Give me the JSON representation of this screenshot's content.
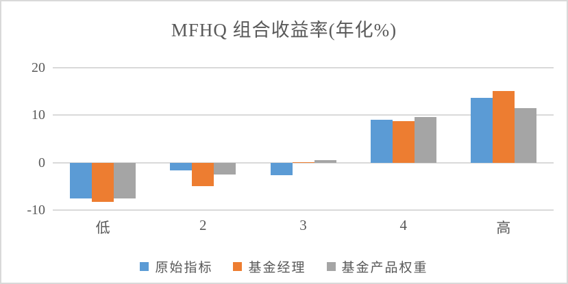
{
  "chart_data": {
    "type": "bar",
    "title": "MFHQ 组合收益率(年化%)",
    "categories": [
      "低",
      "2",
      "3",
      "4",
      "高"
    ],
    "series": [
      {
        "name": "原始指标",
        "color": "#5B9BD5",
        "values": [
          -7.5,
          -1.6,
          -2.6,
          9.1,
          13.6
        ]
      },
      {
        "name": "基金经理",
        "color": "#ED7D31",
        "values": [
          -8.2,
          -5.0,
          0.1,
          8.7,
          15.1
        ]
      },
      {
        "name": "基金产品权重",
        "color": "#A5A5A5",
        "values": [
          -7.5,
          -2.5,
          0.5,
          9.6,
          11.5
        ]
      }
    ],
    "xlabel": "",
    "ylabel": "",
    "ylim": [
      -10,
      20
    ],
    "yticks": [
      20,
      10,
      0,
      -10
    ],
    "grid": true,
    "legend_position": "bottom"
  },
  "colors": {
    "text": "#595959",
    "gridline": "#D9D9D9",
    "border": "#D9D9D9",
    "background": "#FFFFFF"
  }
}
